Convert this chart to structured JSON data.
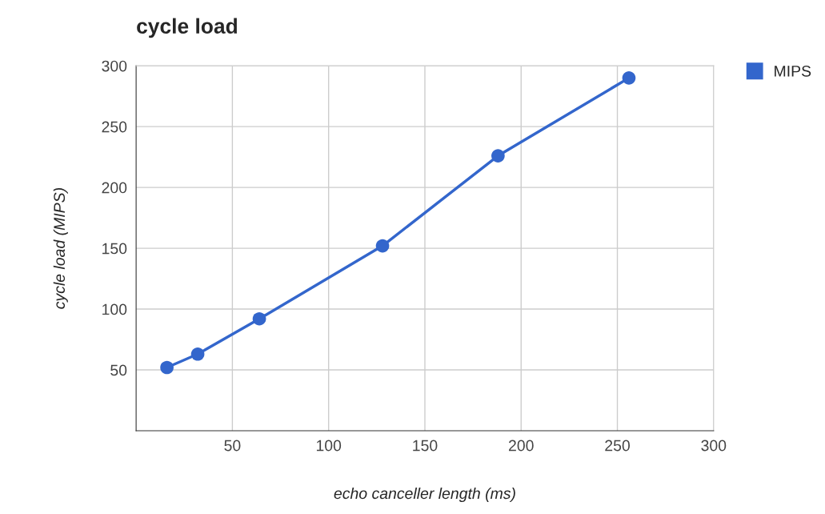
{
  "chart_data": {
    "type": "line",
    "title": "cycle load",
    "xlabel": "echo canceller length (ms)",
    "ylabel": "cycle load (MIPS)",
    "x": [
      16,
      32,
      64,
      128,
      188,
      256
    ],
    "series": [
      {
        "name": "MIPS",
        "color": "#3366cc",
        "values": [
          52,
          63,
          92,
          152,
          226,
          290
        ]
      }
    ],
    "xlim": [
      0,
      300
    ],
    "xticks": [
      50,
      100,
      150,
      200,
      250,
      300
    ],
    "ylim": [
      0,
      300
    ],
    "yticks": [
      50,
      100,
      150,
      200,
      250,
      300
    ],
    "grid": true,
    "legend": "top right",
    "marker": "circle",
    "line_style": "solid"
  }
}
